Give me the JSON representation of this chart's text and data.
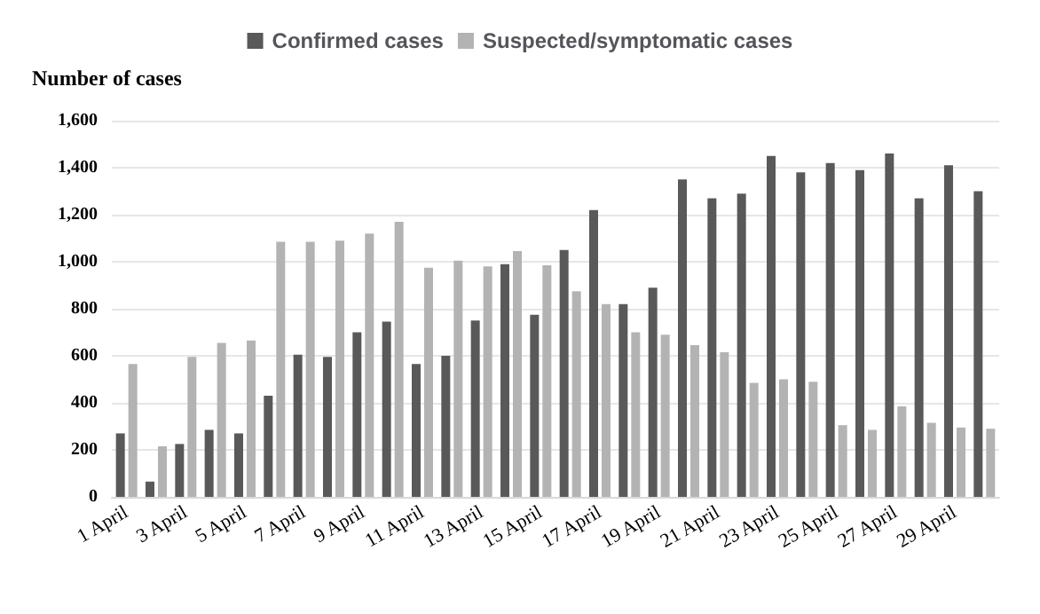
{
  "chart_data": {
    "type": "bar",
    "ylabel": "Number of cases",
    "categories": [
      "1 April",
      null,
      "3 April",
      null,
      "5 April",
      null,
      "7 April",
      null,
      "9 April",
      null,
      "11 April",
      null,
      "13 April",
      null,
      "15 April",
      null,
      "17 April",
      null,
      "19 April",
      null,
      "21 April",
      null,
      "23 April",
      null,
      "25 April",
      null,
      "27 April",
      null,
      "29 April",
      null
    ],
    "series": [
      {
        "name": "Confirmed cases",
        "color": "#595959",
        "values": [
          270,
          65,
          225,
          285,
          270,
          430,
          605,
          595,
          700,
          745,
          565,
          600,
          750,
          990,
          775,
          1050,
          1220,
          820,
          890,
          1350,
          1270,
          1290,
          1450,
          1380,
          1420,
          1390,
          1460,
          1270,
          1410,
          1300
        ]
      },
      {
        "name": "Suspected/symptomatic cases",
        "color": "#b3b3b3",
        "values": [
          565,
          215,
          595,
          655,
          665,
          1085,
          1085,
          1090,
          1120,
          1170,
          975,
          1005,
          980,
          1045,
          985,
          875,
          820,
          700,
          690,
          645,
          615,
          485,
          500,
          490,
          305,
          285,
          385,
          315,
          295,
          290
        ]
      }
    ],
    "ylim": [
      0,
      1600
    ],
    "yticks": [
      0,
      200,
      400,
      600,
      800,
      {
        "value": 1000,
        "label": "1,000"
      },
      {
        "value": 1200,
        "label": "1,200"
      },
      {
        "value": 1400,
        "label": "1,400"
      },
      {
        "value": 1600,
        "label": "1,600"
      }
    ],
    "grid": "y",
    "legend": "top"
  }
}
